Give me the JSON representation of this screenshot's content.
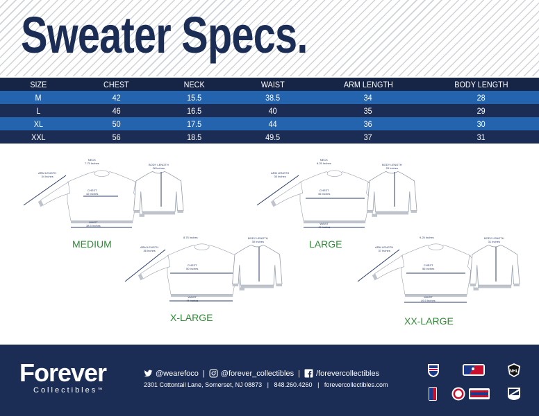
{
  "header": {
    "title": "Sweater Specs."
  },
  "table": {
    "columns": [
      "SIZE",
      "CHEST",
      "NECK",
      "WAIST",
      "ARM LENGTH",
      "BODY LENGTH"
    ],
    "rows": [
      [
        "M",
        "42",
        "15.5",
        "38.5",
        "34",
        "28"
      ],
      [
        "L",
        "46",
        "16.5",
        "40",
        "35",
        "29"
      ],
      [
        "XL",
        "50",
        "17.5",
        "44",
        "36",
        "30"
      ],
      [
        "XXL",
        "56",
        "18.5",
        "49.5",
        "37",
        "31"
      ]
    ]
  },
  "diagrams": {
    "medium": {
      "label": "MEDIUM",
      "neck_title": "NECK",
      "neck": "7.75 Inches",
      "arm_title": "ARM LENGTH",
      "arm": "34 Inches",
      "chest_title": "CHEST",
      "chest": "42 Inches",
      "waist_title": "WAIST",
      "waist": "38.5 Inches",
      "body_title": "BODY LENGTH",
      "body": "28 Inches"
    },
    "large": {
      "label": "LARGE",
      "neck_title": "NECK",
      "neck": "8.25 Inches",
      "arm_title": "ARM LENGTH",
      "arm": "35 Inches",
      "chest_title": "CHEST",
      "chest": "46 Inches",
      "waist_title": "WAIST",
      "waist": "40 Inches",
      "body_title": "BODY LENGTH",
      "body": "29 Inches"
    },
    "xlarge": {
      "label": "X-LARGE",
      "neck": "8.75 Inches",
      "arm_title": "ARM LENGTH",
      "arm": "36 Inches",
      "chest_title": "CHEST",
      "chest": "50 Inches",
      "waist_title": "WAIST",
      "waist": "44 Inches",
      "body_title": "BODY LENGTH",
      "body": "30 Inches"
    },
    "xxlarge": {
      "label": "XX-LARGE",
      "neck": "9.25 Inches",
      "arm_title": "ARM LENGTH",
      "arm": "37 Inches",
      "chest_title": "CHEST",
      "chest": "56 Inches",
      "waist_title": "WAIST",
      "waist": "49.5 Inches",
      "body_title": "BODY LENGTH",
      "body": "31 Inches"
    }
  },
  "footer": {
    "brand_main": "Forever",
    "brand_sub": "Collectibles",
    "brand_tm": "™",
    "twitter": "@wearefoco",
    "instagram": "@forever_collectibles",
    "facebook": "/forevercollectibles",
    "sep": "|",
    "address": "2301 Cottontail Lane, Somerset, NJ 08873",
    "phone": "848.260.4260",
    "website": "forevercollectibles.com",
    "league_logos": [
      "nfl-logo",
      "mlb-logo",
      "nhl-logo",
      "nba-logo",
      "ncaa-logo",
      "mls-logo",
      "team-logo"
    ],
    "colors": {
      "navy": "#1c2d55",
      "blue": "#2463ad",
      "green": "#2d8b34"
    }
  }
}
